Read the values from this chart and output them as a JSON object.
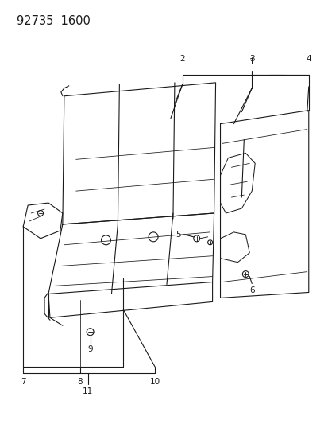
{
  "title": "92735  1600",
  "bg_color": "#ffffff",
  "line_color": "#1a1a1a",
  "title_fontsize": 10.5,
  "label_fontsize": 7.5,
  "lw": 0.8
}
